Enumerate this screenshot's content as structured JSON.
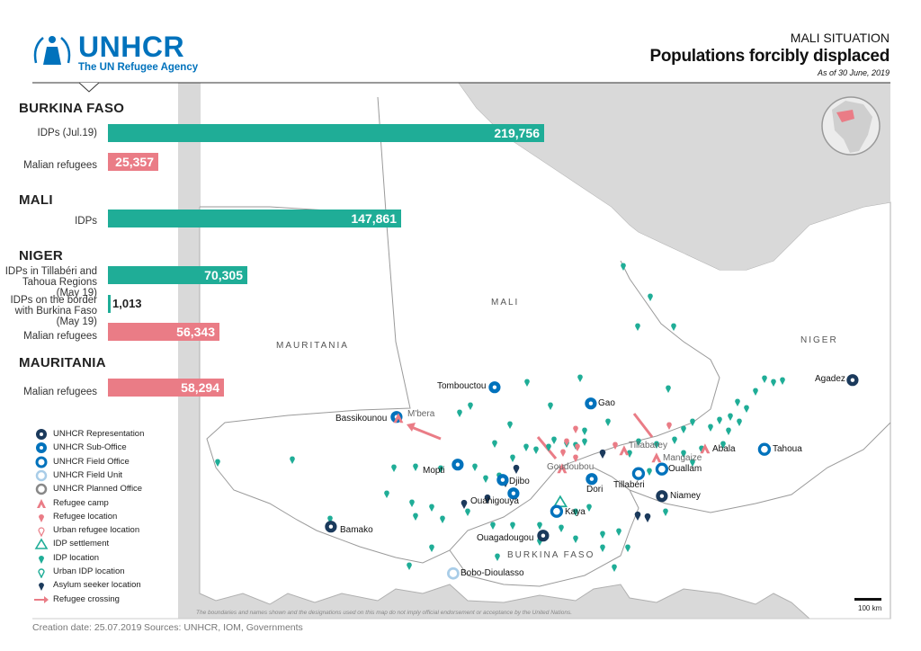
{
  "logo": {
    "name": "UNHCR",
    "subtitle": "The UN Refugee Agency"
  },
  "header": {
    "kicker": "MALI SITUATION",
    "title": "Populations forcibly displaced",
    "date": "As of 30 June, 2019"
  },
  "figures": [
    {
      "country": "BURKINA FASO",
      "rows": [
        {
          "label": "IDPs (Jul.19)",
          "value": 219756,
          "display": "219,756",
          "group": "idp"
        },
        {
          "label": "Malian refugees",
          "value": 25357,
          "display": "25,357",
          "group": "refugee"
        }
      ]
    },
    {
      "country": "MALI",
      "rows": [
        {
          "label": "IDPs",
          "value": 147861,
          "display": "147,861",
          "group": "idp"
        }
      ]
    },
    {
      "country": "NIGER",
      "rows": [
        {
          "label": "IDPs in Tillabéri and Tahoua Regions (May 19)",
          "value": 70305,
          "display": "70,305",
          "group": "idp"
        },
        {
          "label": "IDPs on the border with Burkina Faso (May 19)",
          "value": 1013,
          "display": "1,013",
          "group": "idp"
        },
        {
          "label": "Malian refugees",
          "value": 56343,
          "display": "56,343",
          "group": "refugee"
        }
      ]
    },
    {
      "country": "MAURITANIA",
      "rows": [
        {
          "label": "Malian refugees",
          "value": 58294,
          "display": "58,294",
          "group": "refugee"
        }
      ]
    }
  ],
  "colors": {
    "idp": "#1fad97",
    "refugee": "#ea7c86",
    "unhcr": "#0072bc",
    "office_dark": "#1b3a5c",
    "land": "#ffffff",
    "outside": "#d9d9d9",
    "border": "#9a9a9a"
  },
  "legend": [
    {
      "icon": "unhcr-representation-icon",
      "label": "UNHCR Representation"
    },
    {
      "icon": "unhcr-sub-office-icon",
      "label": "UNHCR Sub-Office"
    },
    {
      "icon": "unhcr-field-office-icon",
      "label": "UNHCR Field Office"
    },
    {
      "icon": "unhcr-field-unit-icon",
      "label": "UNHCR Field Unit"
    },
    {
      "icon": "unhcr-planned-office-icon",
      "label": "UNHCR Planned Office"
    },
    {
      "icon": "refugee-camp-icon",
      "label": "Refugee camp"
    },
    {
      "icon": "refugee-location-icon",
      "label": "Refugee location"
    },
    {
      "icon": "urban-refugee-location-icon",
      "label": "Urban refugee location"
    },
    {
      "icon": "idp-settlement-icon",
      "label": "IDP settlement"
    },
    {
      "icon": "idp-location-icon",
      "label": "IDP location"
    },
    {
      "icon": "urban-idp-location-icon",
      "label": "Urban IDP location"
    },
    {
      "icon": "asylum-seeker-location-icon",
      "label": "Asylum seeker location"
    },
    {
      "icon": "refugee-crossing-icon",
      "label": "Refugee crossing"
    }
  ],
  "map": {
    "countries": [
      "MALI",
      "MAURITANIA",
      "NIGER",
      "BURKINA FASO"
    ],
    "places": [
      "Tombouctou",
      "Gao",
      "Agadez",
      "Bassikounou",
      "M'bera",
      "Abala",
      "Tahoua",
      "Tillabarey",
      "Mangaize",
      "Ouallam",
      "Mopti",
      "Djibo",
      "Goudoubou",
      "Dori",
      "Tillabéri",
      "Niamey",
      "Ouahigouya",
      "Kaya",
      "Bamako",
      "Ouagadougou",
      "Bobo-Dioulasso"
    ],
    "disclaimer": "The boundaries and names shown and the designations used on this map do not imply official endorsement or acceptance by the United Nations.",
    "scale": "100 km"
  },
  "footer": {
    "created": "Creation date: 25.07.2019",
    "sources": "Sources: UNHCR,  IOM, Governments"
  }
}
